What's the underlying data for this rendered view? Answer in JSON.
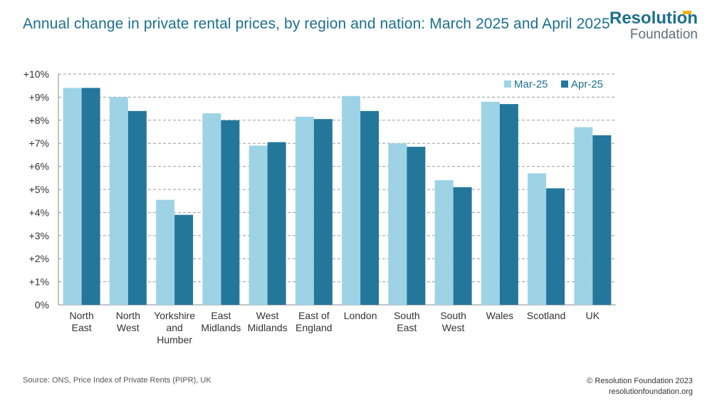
{
  "header": {
    "title": "Annual change in private rental prices, by region and nation: March 2025 and April 2025"
  },
  "logo": {
    "name": "Resolution",
    "sub": "Foundation",
    "accent_color": "#f2b418"
  },
  "footer": {
    "source": "Source: ONS, Price Index of Private Rents (PIPR), UK",
    "copyright": "© Resolution Foundation 2023",
    "website": "resolutionfoundation.org"
  },
  "chart_data": {
    "type": "bar",
    "title": "Annual change in private rental prices, by region and nation: March 2025 and April 2025",
    "xlabel": "",
    "ylabel": "",
    "ylim": [
      0,
      10
    ],
    "yticks": [
      0,
      1,
      2,
      3,
      4,
      5,
      6,
      7,
      8,
      9,
      10
    ],
    "ytick_labels": [
      "0%",
      "+1%",
      "+2%",
      "+3%",
      "+4%",
      "+5%",
      "+6%",
      "+7%",
      "+8%",
      "+9%",
      "+10%"
    ],
    "grid": true,
    "legend_position": "top-right",
    "categories": [
      [
        "North",
        "East"
      ],
      [
        "North",
        "West"
      ],
      [
        "Yorkshire",
        "and",
        "Humber"
      ],
      [
        "East",
        "Midlands"
      ],
      [
        "West",
        "Midlands"
      ],
      [
        "East of",
        "England"
      ],
      [
        "London"
      ],
      [
        "South",
        "East"
      ],
      [
        "South",
        "West"
      ],
      [
        "Wales"
      ],
      [
        "Scotland"
      ],
      [
        "UK"
      ]
    ],
    "series": [
      {
        "name": "Mar-25",
        "color": "#9ed3e6",
        "values": [
          9.4,
          9.0,
          4.55,
          8.3,
          6.9,
          8.15,
          9.05,
          7.0,
          5.4,
          8.8,
          5.7,
          7.7
        ]
      },
      {
        "name": "Apr-25",
        "color": "#23779b",
        "values": [
          9.4,
          8.4,
          3.9,
          8.0,
          7.05,
          8.05,
          8.4,
          6.85,
          5.1,
          8.7,
          5.05,
          7.35
        ]
      }
    ]
  }
}
